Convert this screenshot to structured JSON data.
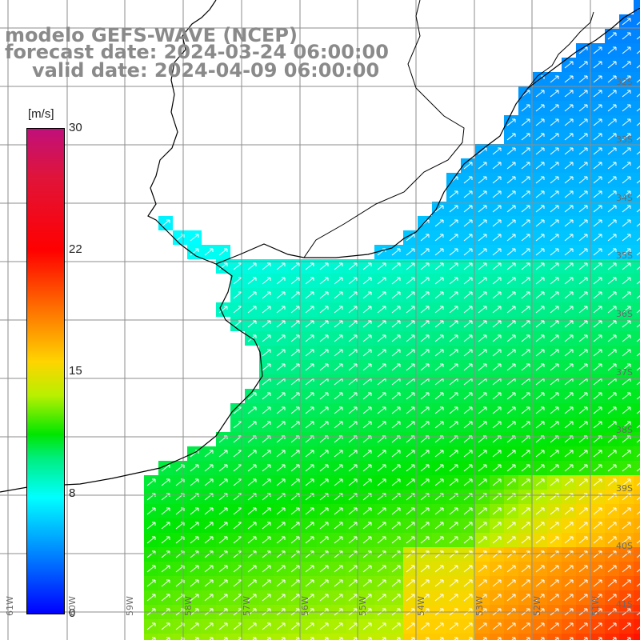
{
  "title": {
    "line1": "modelo GEFS-WAVE (NCEP)",
    "line2": "forecast date: 2024-03-24 06:00:00",
    "line3": "valid date: 2024-04-09 06:00:00"
  },
  "colorbar": {
    "unit": "[m/s]",
    "ticks": [
      {
        "value": 30,
        "label": "30"
      },
      {
        "value": 22,
        "label": "22"
      },
      {
        "value": 15,
        "label": "15"
      },
      {
        "value": 8,
        "label": "8"
      },
      {
        "value": 0,
        "label": "0"
      }
    ],
    "stops": [
      "#0000ff",
      "#0096ff",
      "#00ffff",
      "#00ee80",
      "#00e600",
      "#b8f000",
      "#ffd400",
      "#ff7800",
      "#ff0000",
      "#e0143a",
      "#c0107a"
    ]
  },
  "lat_labels": [
    "32S",
    "33S",
    "34S",
    "35S",
    "36S",
    "37S",
    "38S",
    "39S",
    "40S",
    "41S"
  ],
  "lon_labels": [
    "61W",
    "60W",
    "59W",
    "58W",
    "57W",
    "56W",
    "55W",
    "54W",
    "53W",
    "52W",
    "51W"
  ],
  "wind_direction": "arrows point toward north-east",
  "colors": {
    "land": "#ffffff",
    "coast": "#000000",
    "grid": "#8c8c8c",
    "title": "#8a8a8a"
  }
}
